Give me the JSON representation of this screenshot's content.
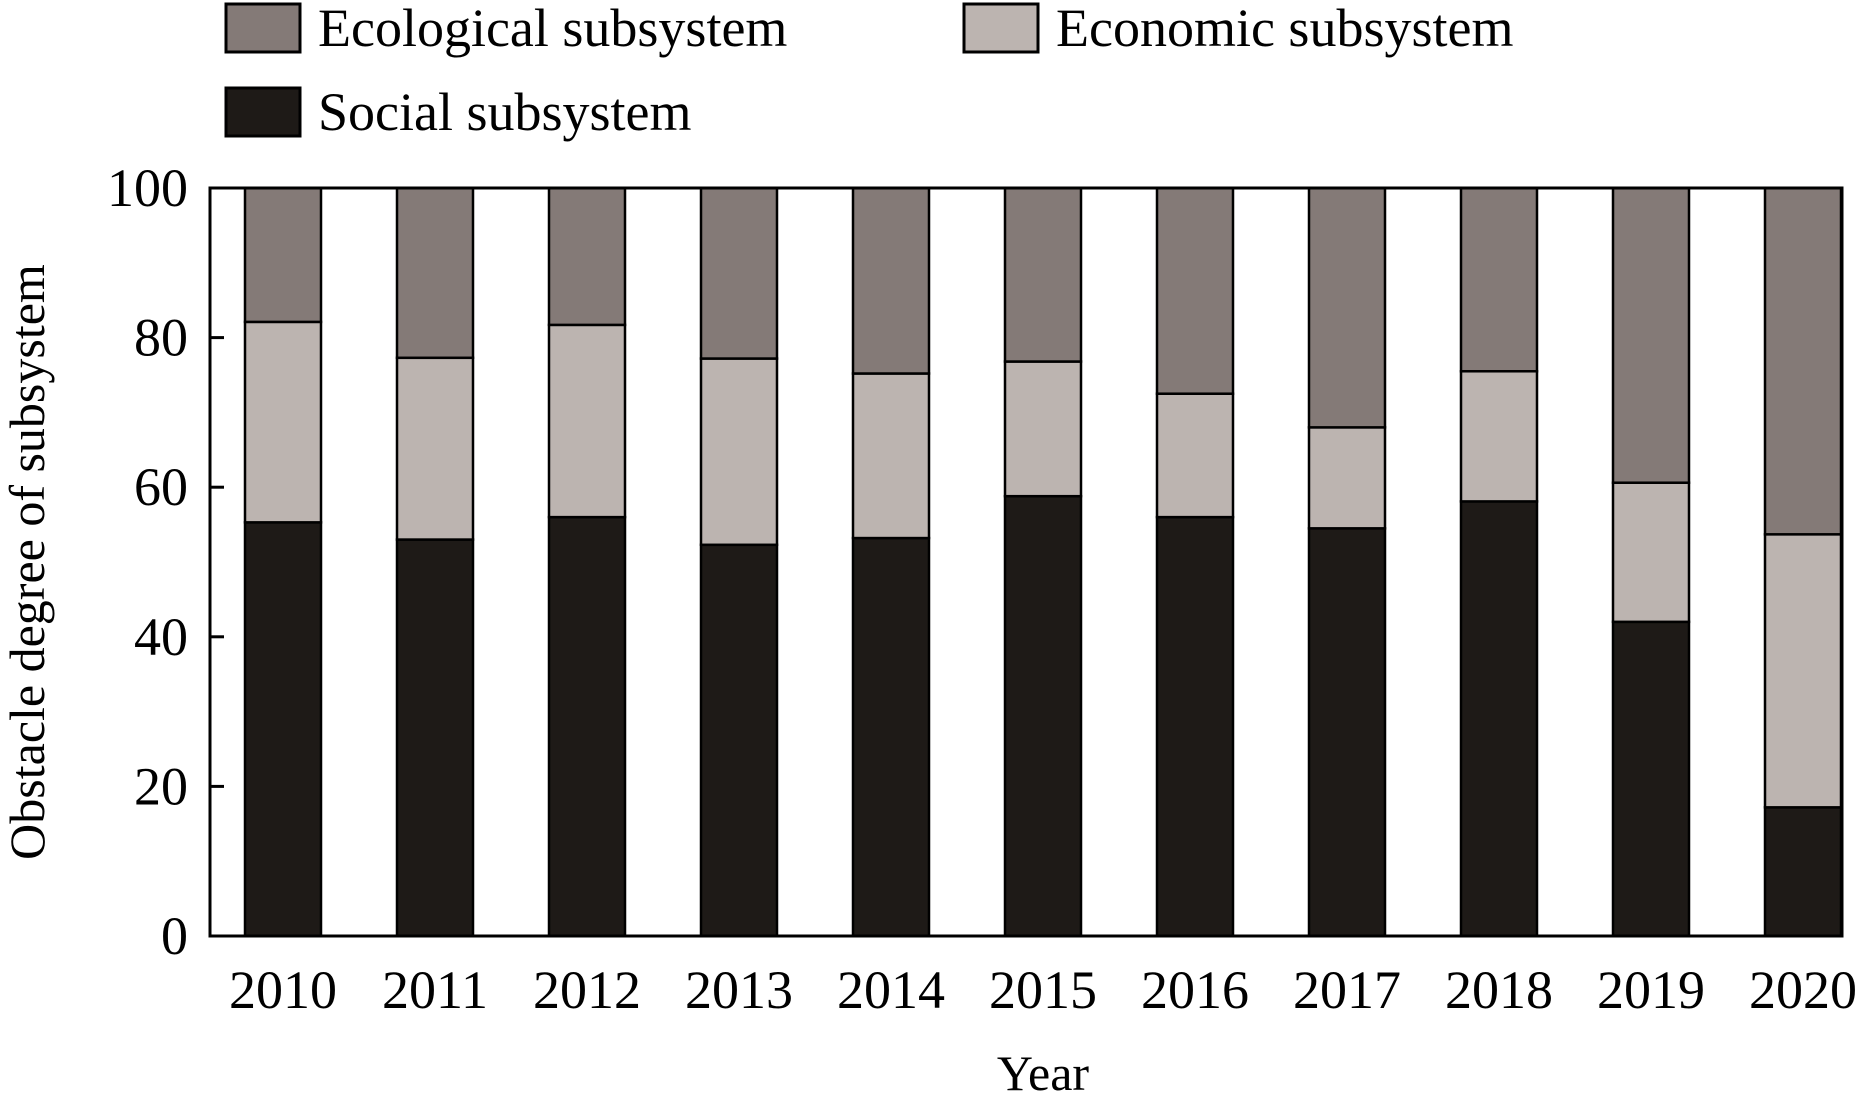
{
  "chart_data": {
    "type": "bar",
    "stacked": true,
    "xlabel": "Year",
    "ylabel": "Obstacle degree of subsystem",
    "ylim": [
      0,
      100
    ],
    "yticks": [
      0,
      20,
      40,
      60,
      80,
      100
    ],
    "categories": [
      "2010",
      "2011",
      "2012",
      "2013",
      "2014",
      "2015",
      "2016",
      "2017",
      "2018",
      "2019",
      "2020"
    ],
    "series": [
      {
        "name": "Social subsystem",
        "color": "#1e1a17",
        "values": [
          55.3,
          53.0,
          56.0,
          52.3,
          53.2,
          58.8,
          56.0,
          54.5,
          58.1,
          42.0,
          17.2
        ]
      },
      {
        "name": "Economic subsystem",
        "color": "#bcb4b0",
        "values": [
          26.8,
          24.3,
          25.7,
          24.9,
          22.0,
          18.0,
          16.5,
          13.5,
          17.4,
          18.6,
          36.5
        ]
      },
      {
        "name": "Ecological subsystem",
        "color": "#847a77",
        "values": [
          17.9,
          22.7,
          18.3,
          22.8,
          24.8,
          23.2,
          27.5,
          32.0,
          24.5,
          39.4,
          46.3
        ]
      }
    ],
    "legend": {
      "placement": "top",
      "order": [
        "Ecological subsystem",
        "Economic subsystem",
        "Social subsystem"
      ]
    },
    "grid": false
  }
}
